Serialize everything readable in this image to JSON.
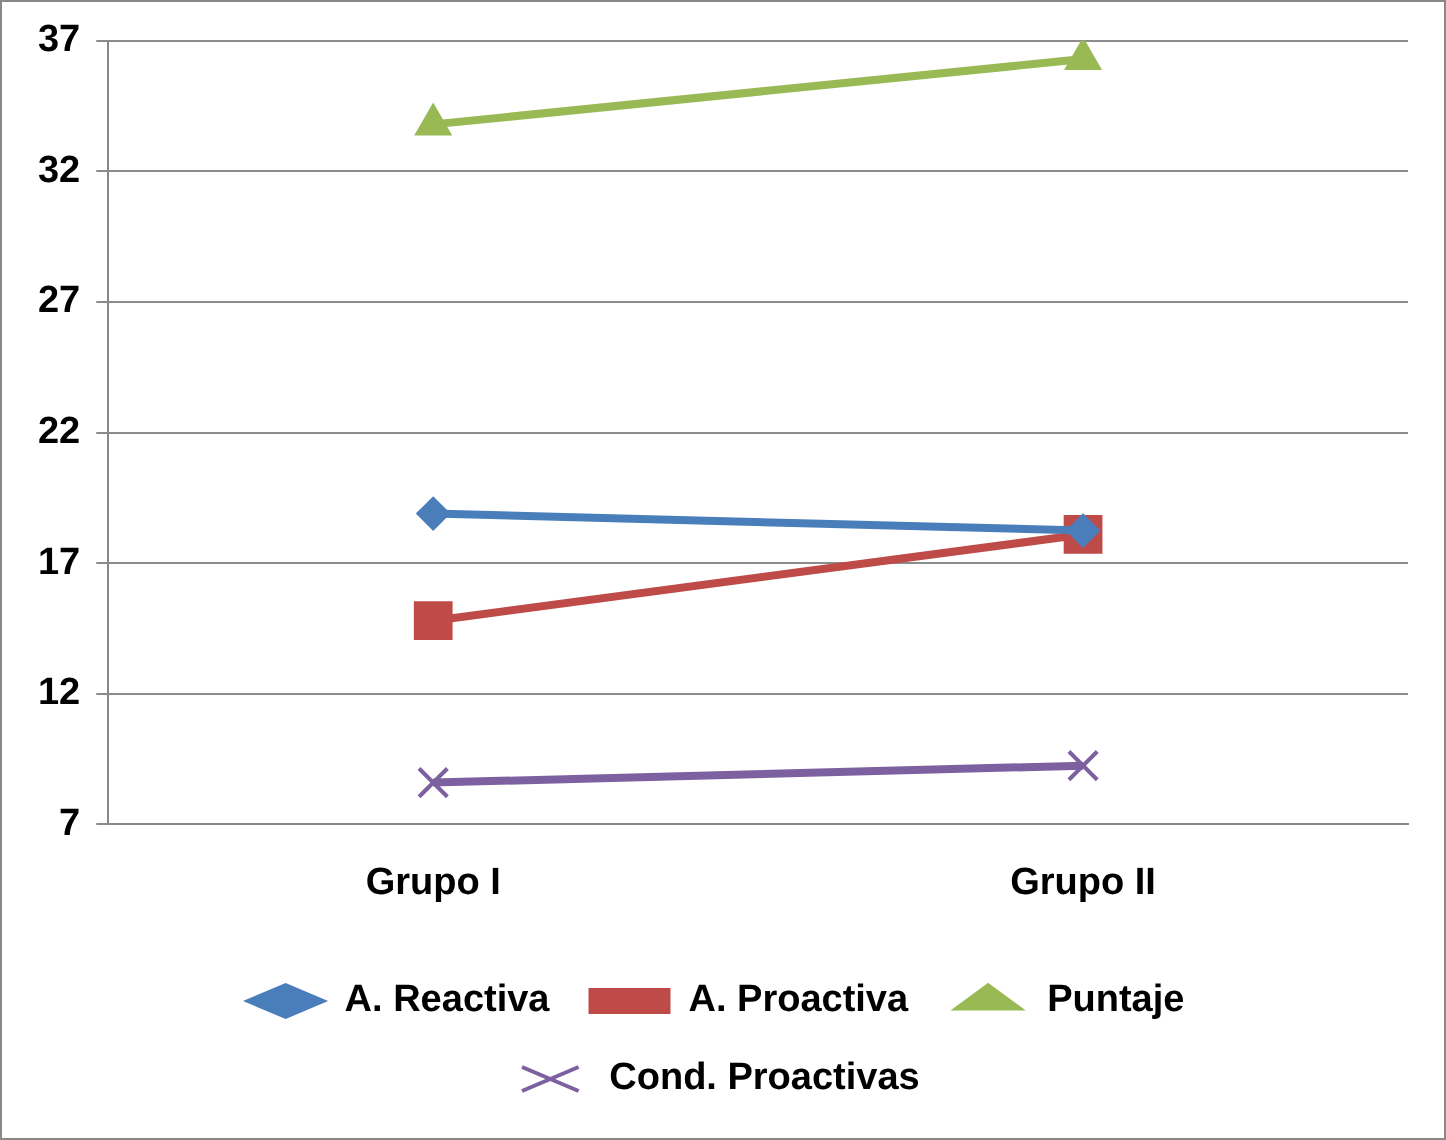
{
  "chart_data": {
    "type": "line",
    "categories": [
      "Grupo I",
      "Grupo II"
    ],
    "series": [
      {
        "name": "A. Reactiva",
        "color": "#4a7ebb",
        "values": [
          18.9,
          18.25
        ],
        "marker": "diamond"
      },
      {
        "name": "A. Proactiva",
        "color": "#be4b48",
        "values": [
          14.8,
          18.1
        ],
        "marker": "square"
      },
      {
        "name": "Puntaje",
        "color": "#98b954",
        "values": [
          33.8,
          36.3
        ],
        "marker": "triangle"
      },
      {
        "name": "Cond. Proactivas",
        "color": "#7d60a0",
        "values": [
          8.6,
          9.25
        ],
        "marker": "cross"
      }
    ],
    "ylim": [
      7,
      37
    ],
    "yticks": [
      7,
      12,
      17,
      22,
      27,
      32,
      37
    ],
    "grid": "y",
    "legend": "bottom"
  }
}
